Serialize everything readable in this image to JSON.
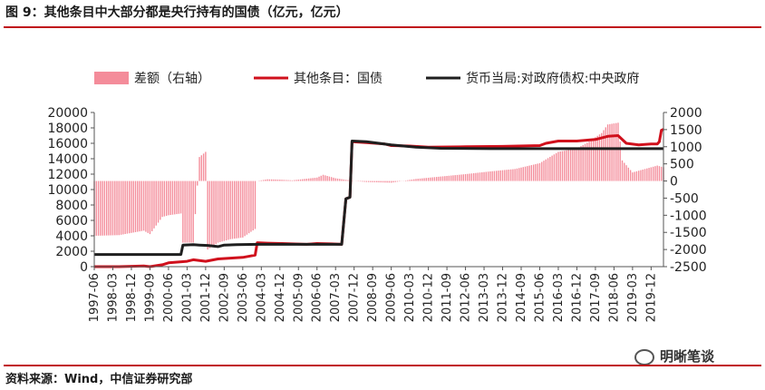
{
  "header": {
    "title": "图 9：其他条目中大部分都是央行持有的国债（亿元，亿元）"
  },
  "footer": {
    "source": "资料来源：Wind，中信证券研究部",
    "watermark": "明晰笔谈"
  },
  "colors": {
    "accent_rule": "#c0111b",
    "bar": "#f48c9a",
    "other_items": "#d0101c",
    "central_gov": "#1f1f1f"
  },
  "chart_data": {
    "type": "line",
    "legend_position": "top",
    "grid": false,
    "legend": [
      {
        "key": "diff",
        "label": "差额（右轴）",
        "kind": "bar",
        "axis": "right"
      },
      {
        "key": "other",
        "label": "其他条目：国债",
        "kind": "line",
        "axis": "left"
      },
      {
        "key": "gov",
        "label": "货币当局:对政府债权:中央政府",
        "kind": "line",
        "axis": "left"
      }
    ],
    "left_axis": {
      "min": 0,
      "max": 20000,
      "ticks": [
        0,
        2000,
        4000,
        6000,
        8000,
        10000,
        12000,
        14000,
        16000,
        18000,
        20000
      ]
    },
    "right_axis": {
      "min": -2500,
      "max": 2000,
      "ticks": [
        -2500,
        -2000,
        -1500,
        -1000,
        -500,
        0,
        500,
        1000,
        1500,
        2000
      ]
    },
    "x_axis": {
      "start": "1997-06",
      "end": "2020-06",
      "tick_labels": [
        "1997-06",
        "1998-03",
        "1998-12",
        "1999-09",
        "2000-06",
        "2001-03",
        "2001-12",
        "2002-09",
        "2003-06",
        "2004-03",
        "2004-12",
        "2005-09",
        "2006-06",
        "2007-03",
        "2007-12",
        "2008-09",
        "2009-06",
        "2010-03",
        "2010-12",
        "2011-09",
        "2012-06",
        "2013-03",
        "2013-12",
        "2014-09",
        "2015-06",
        "2016-03",
        "2016-12",
        "2017-09",
        "2018-06",
        "2019-03",
        "2019-12"
      ]
    },
    "series": [
      {
        "key": "other",
        "name": "其他条目：国债",
        "points": [
          [
            "1997-06",
            0
          ],
          [
            "1998-06",
            0
          ],
          [
            "1999-06",
            80
          ],
          [
            "1999-09",
            0
          ],
          [
            "2000-03",
            250
          ],
          [
            "2000-06",
            500
          ],
          [
            "2001-03",
            700
          ],
          [
            "2001-06",
            900
          ],
          [
            "2001-12",
            700
          ],
          [
            "2002-06",
            1000
          ],
          [
            "2002-12",
            1100
          ],
          [
            "2003-06",
            1200
          ],
          [
            "2003-12",
            1500
          ],
          [
            "2004-01",
            3100
          ],
          [
            "2004-06",
            3050
          ],
          [
            "2005-01",
            3000
          ],
          [
            "2005-06",
            2950
          ],
          [
            "2006-01",
            2900
          ],
          [
            "2006-06",
            3000
          ],
          [
            "2007-01",
            2950
          ],
          [
            "2007-06",
            2900
          ],
          [
            "2007-08",
            8800
          ],
          [
            "2007-10",
            9000
          ],
          [
            "2007-11",
            16200
          ],
          [
            "2008-06",
            16100
          ],
          [
            "2009-03",
            15900
          ],
          [
            "2009-06",
            15700
          ],
          [
            "2010-03",
            15650
          ],
          [
            "2010-12",
            15500
          ],
          [
            "2012-06",
            15550
          ],
          [
            "2013-12",
            15600
          ],
          [
            "2015-06",
            15700
          ],
          [
            "2015-09",
            16000
          ],
          [
            "2016-03",
            16300
          ],
          [
            "2016-12",
            16300
          ],
          [
            "2017-09",
            16500
          ],
          [
            "2018-03",
            16900
          ],
          [
            "2018-08",
            17000
          ],
          [
            "2018-12",
            16000
          ],
          [
            "2019-06",
            15800
          ],
          [
            "2019-12",
            15900
          ],
          [
            "2020-03",
            15900
          ],
          [
            "2020-04",
            16200
          ],
          [
            "2020-05",
            17700
          ],
          [
            "2020-06",
            17800
          ]
        ]
      },
      {
        "key": "gov",
        "name": "货币当局:对政府债权:中央政府",
        "points": [
          [
            "1997-06",
            1580
          ],
          [
            "1998-06",
            1580
          ],
          [
            "1999-06",
            1580
          ],
          [
            "2000-06",
            1580
          ],
          [
            "2000-12",
            1580
          ],
          [
            "2001-01",
            2800
          ],
          [
            "2001-06",
            2850
          ],
          [
            "2001-09",
            2800
          ],
          [
            "2002-01",
            2750
          ],
          [
            "2002-06",
            2600
          ],
          [
            "2002-09",
            2800
          ],
          [
            "2003-03",
            2850
          ],
          [
            "2004-01",
            2900
          ],
          [
            "2005-06",
            2900
          ],
          [
            "2006-06",
            2900
          ],
          [
            "2007-06",
            2900
          ],
          [
            "2007-08",
            8800
          ],
          [
            "2007-10",
            9000
          ],
          [
            "2007-11",
            16300
          ],
          [
            "2008-06",
            16200
          ],
          [
            "2009-06",
            15800
          ],
          [
            "2010-06",
            15500
          ],
          [
            "2011-06",
            15350
          ],
          [
            "2013-06",
            15300
          ],
          [
            "2016-06",
            15300
          ],
          [
            "2018-06",
            15300
          ],
          [
            "2020-06",
            15300
          ]
        ]
      },
      {
        "key": "diff",
        "name": "差额（右轴）",
        "points": [
          [
            "1997-06",
            -1600
          ],
          [
            "1998-06",
            -1580
          ],
          [
            "1999-06",
            -1450
          ],
          [
            "1999-09",
            -1550
          ],
          [
            "2000-03",
            -1050
          ],
          [
            "2000-06",
            -1000
          ],
          [
            "2000-12",
            -950
          ],
          [
            "2001-01",
            -1800
          ],
          [
            "2001-06",
            -1800
          ],
          [
            "2001-09",
            700
          ],
          [
            "2001-12",
            850
          ],
          [
            "2002-01",
            -2000
          ],
          [
            "2002-06",
            -1800
          ],
          [
            "2002-12",
            -1700
          ],
          [
            "2003-06",
            -1650
          ],
          [
            "2003-12",
            -1400
          ],
          [
            "2004-01",
            0
          ],
          [
            "2004-06",
            50
          ],
          [
            "2004-12",
            40
          ],
          [
            "2005-06",
            20
          ],
          [
            "2006-06",
            100
          ],
          [
            "2006-09",
            180
          ],
          [
            "2007-03",
            80
          ],
          [
            "2007-12",
            0
          ],
          [
            "2008-06",
            -30
          ],
          [
            "2009-06",
            -50
          ],
          [
            "2010-06",
            60
          ],
          [
            "2011-06",
            130
          ],
          [
            "2012-06",
            200
          ],
          [
            "2013-06",
            280
          ],
          [
            "2014-06",
            350
          ],
          [
            "2015-06",
            520
          ],
          [
            "2016-03",
            850
          ],
          [
            "2016-12",
            950
          ],
          [
            "2017-06",
            1150
          ],
          [
            "2017-12",
            1400
          ],
          [
            "2018-03",
            1650
          ],
          [
            "2018-08",
            1700
          ],
          [
            "2018-10",
            600
          ],
          [
            "2019-03",
            250
          ],
          [
            "2019-06",
            300
          ],
          [
            "2019-12",
            400
          ],
          [
            "2020-03",
            450
          ],
          [
            "2020-06",
            400
          ]
        ]
      }
    ]
  }
}
